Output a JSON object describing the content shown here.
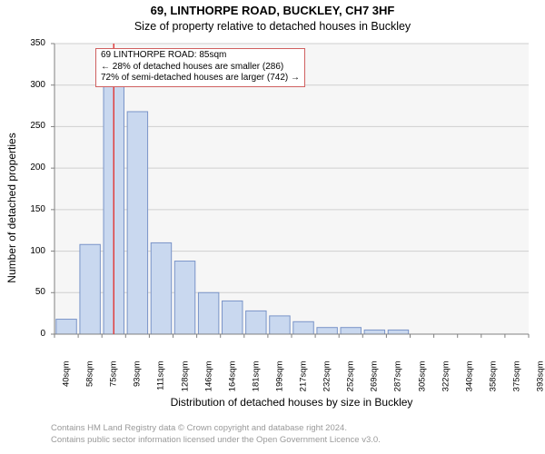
{
  "title_line1": "69, LINTHORPE ROAD, BUCKLEY, CH7 3HF",
  "title_line2": "Size of property relative to detached houses in Buckley",
  "chart": {
    "type": "histogram",
    "ylabel": "Number of detached properties",
    "xlabel": "Distribution of detached houses by size in Buckley",
    "ylim": [
      0,
      350
    ],
    "ytick_step": 50,
    "xtick_labels": [
      "40sqm",
      "58sqm",
      "75sqm",
      "93sqm",
      "111sqm",
      "128sqm",
      "146sqm",
      "164sqm",
      "181sqm",
      "199sqm",
      "217sqm",
      "232sqm",
      "252sqm",
      "269sqm",
      "287sqm",
      "305sqm",
      "322sqm",
      "340sqm",
      "358sqm",
      "375sqm",
      "393sqm"
    ],
    "bar_values": [
      18,
      108,
      310,
      268,
      110,
      88,
      50,
      40,
      28,
      22,
      15,
      8,
      8,
      5,
      5,
      0,
      0,
      0,
      0,
      0
    ],
    "highlight_index": 2,
    "plot_bg": "#f6f6f6",
    "grid_color": "#cfcfcf",
    "axis_color": "#808080",
    "bar_fill": "#c9d8ef",
    "bar_stroke": "#7a94c8",
    "highlight_line_color": "#e04040",
    "label_fontsize": 12,
    "tick_fontsize": 10
  },
  "annotation": {
    "line1": "69 LINTHORPE ROAD: 85sqm",
    "line2": "← 28% of detached houses are smaller (286)",
    "line3": "72% of semi-detached houses are larger (742) →",
    "border_color": "#d06060",
    "bg": "#ffffff"
  },
  "footnote": {
    "line1": "Contains HM Land Registry data © Crown copyright and database right 2024.",
    "line2": "Contains public sector information licensed under the Open Government Licence v3.0.",
    "color": "#9a9a9a"
  }
}
